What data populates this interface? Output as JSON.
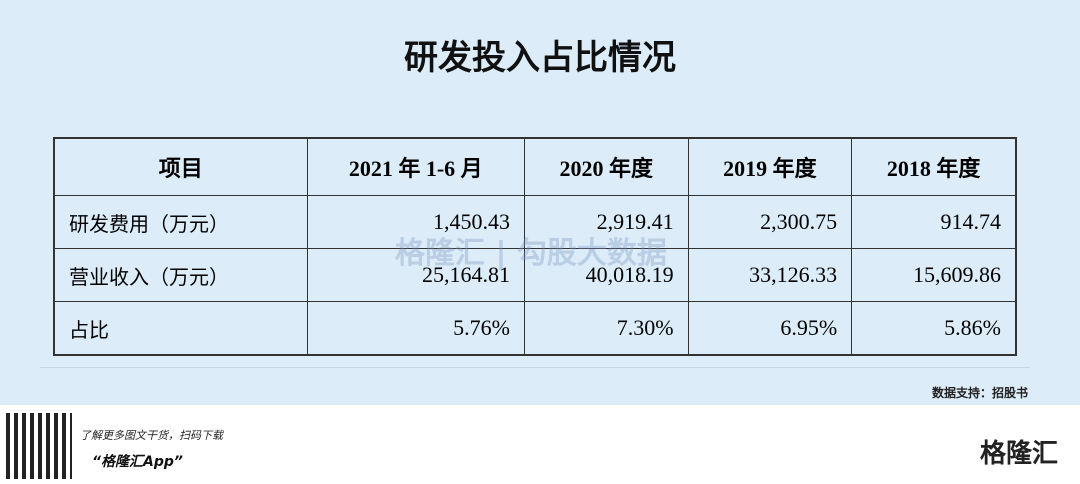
{
  "header": {
    "title": "研发投入占比情况"
  },
  "table": {
    "columns": [
      "项目",
      "2021 年 1-6 月",
      "2020 年度",
      "2019 年度",
      "2018 年度"
    ],
    "rows": [
      [
        "研发费用（万元）",
        "1,450.43",
        "2,919.41",
        "2,300.75",
        "914.74"
      ],
      [
        "营业收入（万元）",
        "25,164.81",
        "40,018.19",
        "33,126.33",
        "15,609.86"
      ],
      [
        "占比",
        "5.76%",
        "7.30%",
        "6.95%",
        "5.86%"
      ]
    ]
  },
  "watermark": {
    "brand": "格隆汇",
    "slogan": "勾股大数据"
  },
  "source": "数据支持：招股书",
  "footer": {
    "promo": "了解更多图文干货，扫码下载",
    "app": "“格隆汇App”",
    "logo": "格隆汇"
  }
}
